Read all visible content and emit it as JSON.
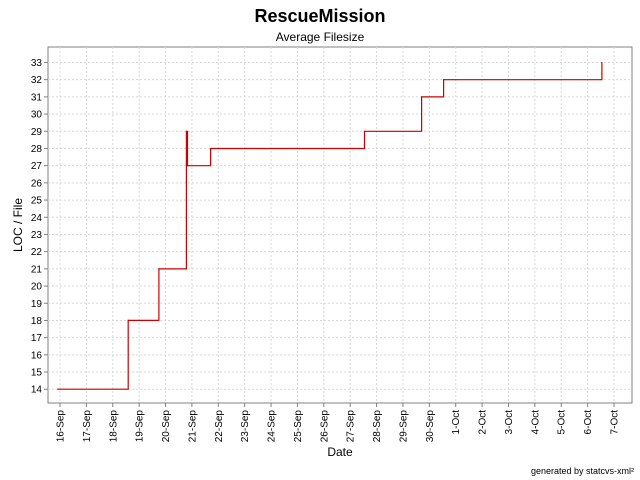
{
  "chart_data": {
    "type": "line",
    "step": "after",
    "title": "RescueMission",
    "subtitle": "Average Filesize",
    "xlabel": "Date",
    "ylabel": "LOC / File",
    "footer": "generated by statcvs-xml²",
    "x_ticks": [
      "16-Sep",
      "17-Sep",
      "18-Sep",
      "19-Sep",
      "20-Sep",
      "21-Sep",
      "22-Sep",
      "23-Sep",
      "24-Sep",
      "25-Sep",
      "26-Sep",
      "27-Sep",
      "28-Sep",
      "29-Sep",
      "30-Sep",
      "1-Oct",
      "2-Oct",
      "3-Oct",
      "4-Oct",
      "5-Oct",
      "6-Oct",
      "7-Oct"
    ],
    "y_ticks": [
      14,
      15,
      16,
      17,
      18,
      19,
      20,
      21,
      22,
      23,
      24,
      25,
      26,
      27,
      28,
      29,
      30,
      31,
      32,
      33
    ],
    "xlim": [
      "2003-09-16T00:00",
      "2003-10-07T00:00"
    ],
    "ylim": [
      13.2,
      33.9
    ],
    "grid": true,
    "color": "#cc0000",
    "series": [
      {
        "points": [
          [
            "2003-09-15T22:00",
            14
          ],
          [
            "2003-09-18T14:00",
            18
          ],
          [
            "2003-09-19T18:00",
            21
          ],
          [
            "2003-09-20T19:00",
            29
          ],
          [
            "2003-09-20T20:00",
            27
          ],
          [
            "2003-09-21T17:00",
            28
          ],
          [
            "2003-09-27T13:00",
            29
          ],
          [
            "2003-09-29T17:00",
            31
          ],
          [
            "2003-09-30T13:00",
            32
          ],
          [
            "2003-10-06T13:00",
            33
          ]
        ]
      }
    ]
  }
}
